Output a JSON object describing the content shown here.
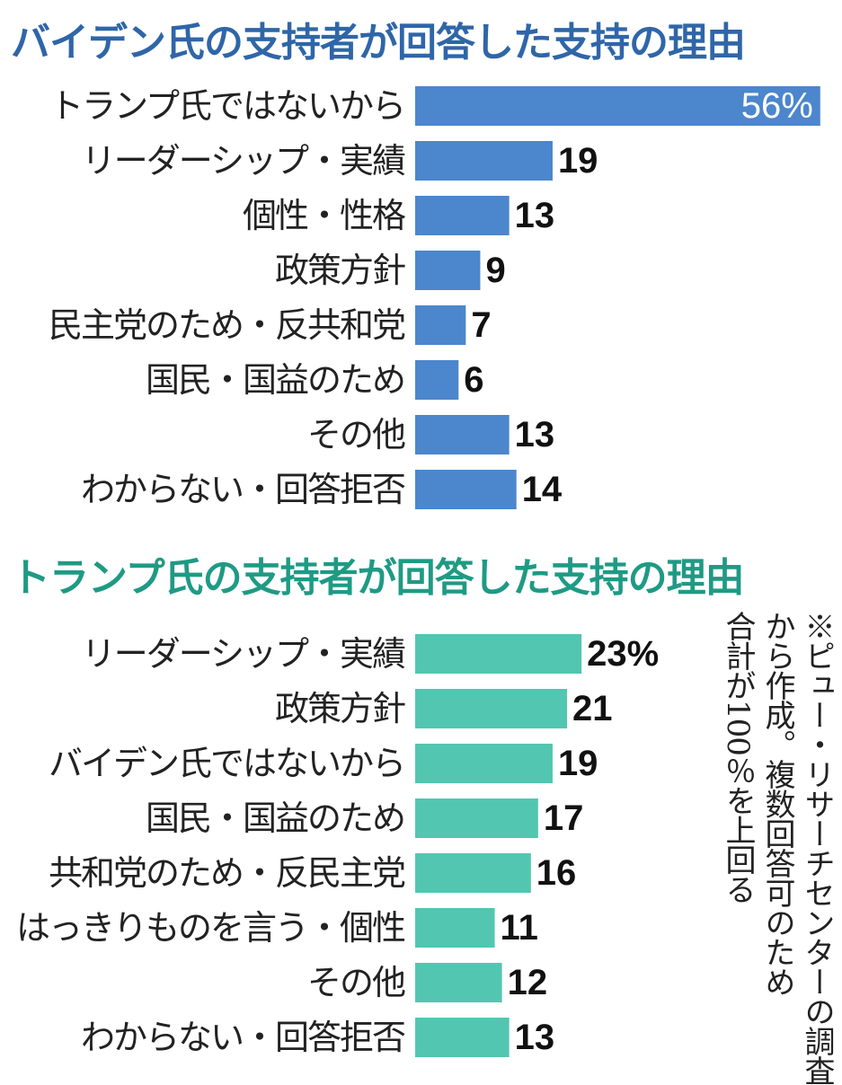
{
  "colors": {
    "biden": "#4c86cc",
    "trump": "#52c6b0"
  },
  "note": {
    "lines": [
      "※ピュー・リサーチセンターの調査",
      "から作成。複数回答可のため",
      "合計が100％を上回る"
    ]
  },
  "chart_data": [
    {
      "type": "bar",
      "orientation": "horizontal",
      "title": "バイデン氏の支持者が回答した支持の理由",
      "categories": [
        "トランプ氏ではないから",
        "リーダーシップ・実績",
        "個性・性格",
        "政策方針",
        "民主党のため・反共和党",
        "国民・国益のため",
        "その他",
        "わからない・回答拒否"
      ],
      "values": [
        56,
        19,
        13,
        9,
        7,
        6,
        13,
        14
      ],
      "value_labels": [
        "56%",
        "19",
        "13",
        "9",
        "7",
        "6",
        "13",
        "14"
      ],
      "unit": "%"
    },
    {
      "type": "bar",
      "orientation": "horizontal",
      "title": "トランプ氏の支持者が回答した支持の理由",
      "categories": [
        "リーダーシップ・実績",
        "政策方針",
        "バイデン氏ではないから",
        "国民・国益のため",
        "共和党のため・反民主党",
        "はっきりものを言う・個性",
        "その他",
        "わからない・回答拒否"
      ],
      "values": [
        23,
        21,
        19,
        17,
        16,
        11,
        12,
        13
      ],
      "value_labels": [
        "23%",
        "21",
        "19",
        "17",
        "16",
        "11",
        "12",
        "13"
      ],
      "unit": "%"
    }
  ]
}
